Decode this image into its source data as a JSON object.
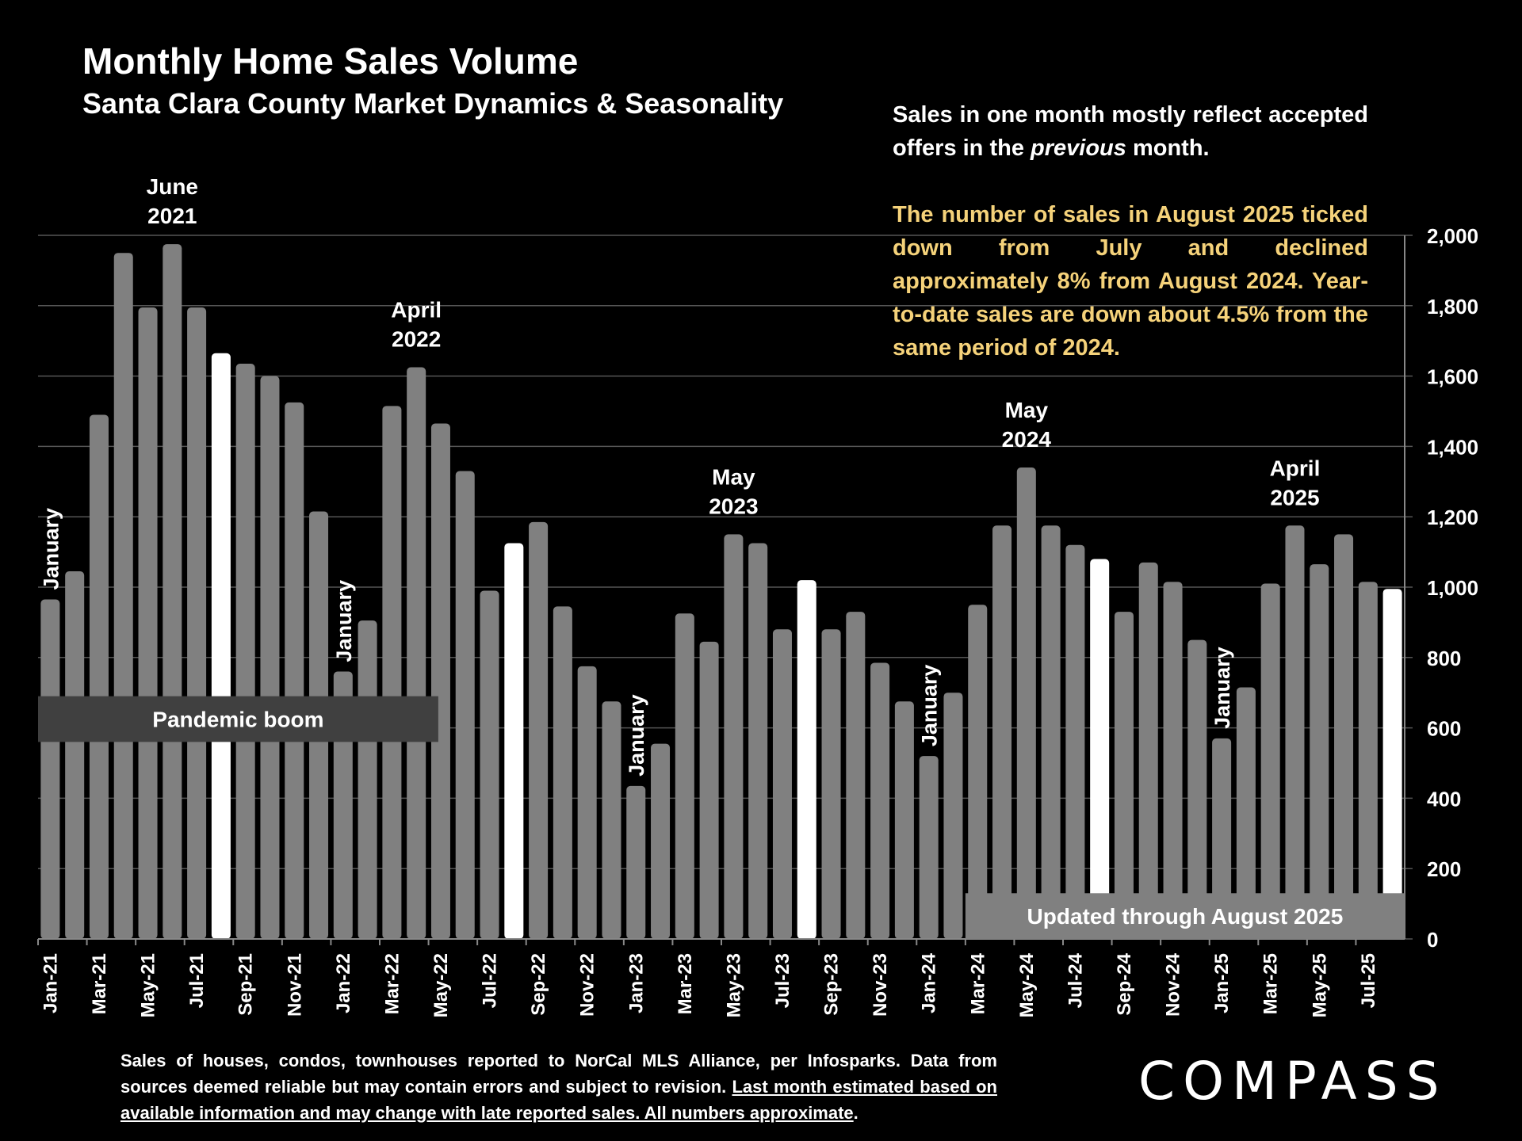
{
  "header": {
    "title": "Monthly Home Sales Volume",
    "subtitle": "Santa Clara County Market Dynamics & Seasonality"
  },
  "notes": {
    "intro_pre": "Sales in one month mostly reflect accepted offers in the ",
    "intro_em": "previous",
    "intro_post": " month.",
    "highlight": "The number of sales in August 2025 ticked down from July and declined approximately 8% from August 2024. Year-to-date sales are down about 4.5% from the same period of 2024."
  },
  "footer": {
    "plain": "Sales of houses, condos, townhouses reported to NorCal MLS Alliance, per Infosparks. Data from sources deemed reliable but may contain errors and subject to revision. ",
    "underlined": "Last month estimated based on available information and may change with late reported sales. All numbers approximate",
    "end": "."
  },
  "logo": {
    "text": "COMPASS"
  },
  "colors": {
    "bar": "#808080",
    "highlight_bar": "#ffffff",
    "note_gold": "#f5d27a",
    "band": "#404040",
    "updated_box": "#808080"
  },
  "chart_data": {
    "type": "bar",
    "title": "Monthly Home Sales Volume",
    "xlabel": "",
    "ylabel": "",
    "ylim": [
      0,
      2000
    ],
    "y_ticks": [
      "0",
      "200",
      "400",
      "600",
      "800",
      "1,000",
      "1,200",
      "1,400",
      "1,600",
      "1,800",
      "2,000"
    ],
    "y_axis_side": "right",
    "grid": true,
    "categories": [
      "Jan-21",
      "Feb-21",
      "Mar-21",
      "Apr-21",
      "May-21",
      "Jun-21",
      "Jul-21",
      "Aug-21",
      "Sep-21",
      "Oct-21",
      "Nov-21",
      "Dec-21",
      "Jan-22",
      "Feb-22",
      "Mar-22",
      "Apr-22",
      "May-22",
      "Jun-22",
      "Jul-22",
      "Aug-22",
      "Sep-22",
      "Oct-22",
      "Nov-22",
      "Dec-22",
      "Jan-23",
      "Feb-23",
      "Mar-23",
      "Apr-23",
      "May-23",
      "Jun-23",
      "Jul-23",
      "Aug-23",
      "Sep-23",
      "Oct-23",
      "Nov-23",
      "Dec-23",
      "Jan-24",
      "Feb-24",
      "Mar-24",
      "Apr-24",
      "May-24",
      "Jun-24",
      "Jul-24",
      "Aug-24",
      "Sep-24",
      "Oct-24",
      "Nov-24",
      "Dec-24",
      "Jan-25",
      "Feb-25",
      "Mar-25",
      "Apr-25",
      "May-25",
      "Jun-25",
      "Jul-25",
      "Aug-25"
    ],
    "x_tick_labels": [
      "Jan-21",
      "Mar-21",
      "May-21",
      "Jul-21",
      "Sep-21",
      "Nov-21",
      "Jan-22",
      "Mar-22",
      "May-22",
      "Jul-22",
      "Sep-22",
      "Nov-22",
      "Jan-23",
      "Mar-23",
      "May-23",
      "Jul-23",
      "Sep-23",
      "Nov-23",
      "Jan-24",
      "Mar-24",
      "May-24",
      "Jul-24",
      "Sep-24",
      "Nov-24",
      "Jan-25",
      "Mar-25",
      "May-25",
      "Jul-25"
    ],
    "values": [
      965,
      1045,
      1490,
      1950,
      1795,
      1975,
      1795,
      1665,
      1635,
      1600,
      1525,
      1215,
      760,
      905,
      1515,
      1625,
      1465,
      1330,
      990,
      1125,
      1185,
      945,
      775,
      675,
      435,
      555,
      925,
      845,
      1150,
      1125,
      880,
      1020,
      880,
      930,
      785,
      675,
      520,
      700,
      950,
      1175,
      1340,
      1175,
      1120,
      1080,
      930,
      1070,
      1015,
      850,
      570,
      715,
      1010,
      1175,
      1065,
      1150,
      1015,
      995
    ],
    "highlighted": [
      "Aug-21",
      "Aug-22",
      "Aug-23",
      "Aug-24",
      "Aug-25"
    ],
    "annotations": [
      {
        "text": "June\n2021",
        "at": "Jun-21",
        "type": "peak"
      },
      {
        "text": "April\n2022",
        "at": "Apr-22",
        "type": "peak"
      },
      {
        "text": "May\n2023",
        "at": "May-23",
        "type": "peak"
      },
      {
        "text": "May\n2024",
        "at": "May-24",
        "type": "peak"
      },
      {
        "text": "April\n2025",
        "at": "Apr-25",
        "type": "peak"
      },
      {
        "text": "January",
        "at": "Jan-21",
        "type": "vertical"
      },
      {
        "text": "January",
        "at": "Jan-22",
        "type": "vertical"
      },
      {
        "text": "January",
        "at": "Jan-23",
        "type": "vertical"
      },
      {
        "text": "January",
        "at": "Jan-24",
        "type": "vertical"
      },
      {
        "text": "January",
        "at": "Jan-25",
        "type": "vertical"
      }
    ],
    "bands": [
      {
        "text": "Pandemic boom",
        "from": "Jan-21",
        "to": "Apr-22",
        "y_range": [
          560,
          690
        ]
      },
      {
        "text": "Updated through August 2025",
        "from": "Mar-24",
        "to": "Aug-25",
        "y_range": [
          0,
          130
        ]
      }
    ]
  }
}
